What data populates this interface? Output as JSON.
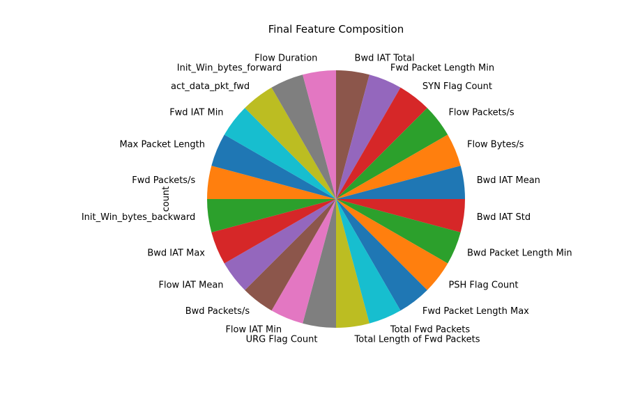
{
  "chart_data": {
    "type": "pie",
    "title": "Final Feature Composition",
    "ylabel": "count",
    "xlabel": "",
    "start_angle_deg": 90,
    "direction": "clockwise",
    "categories": [
      "Bwd IAT Total",
      "Fwd Packet Length Min",
      "SYN Flag Count",
      "Flow Packets/s",
      "Flow Bytes/s",
      "Bwd IAT Mean",
      "Bwd IAT Std",
      "Bwd Packet Length Min",
      "PSH Flag Count",
      "Fwd Packet Length Max",
      "Total Fwd Packets",
      "Total Length of Fwd Packets",
      "URG Flag Count",
      "Flow IAT Min",
      "Bwd Packets/s",
      "Flow IAT Mean",
      "Bwd IAT Max",
      "Init_Win_bytes_backward",
      "Fwd Packets/s",
      "Max Packet Length",
      "Fwd IAT Min",
      "act_data_pkt_fwd",
      "Init_Win_bytes_forward",
      "Flow Duration"
    ],
    "values": [
      1,
      1,
      1,
      1,
      1,
      1,
      1,
      1,
      1,
      1,
      1,
      1,
      1,
      1,
      1,
      1,
      1,
      1,
      1,
      1,
      1,
      1,
      1,
      1
    ],
    "colors": [
      "#8c564b",
      "#9467bd",
      "#d62728",
      "#2ca02c",
      "#ff7f0e",
      "#1f77b4",
      "#d62728",
      "#2ca02c",
      "#ff7f0e",
      "#1f77b4",
      "#17becf",
      "#bcbd22",
      "#7f7f7f",
      "#e377c2",
      "#8c564b",
      "#9467bd",
      "#d62728",
      "#2ca02c",
      "#ff7f0e",
      "#1f77b4",
      "#17becf",
      "#bcbd22",
      "#7f7f7f",
      "#e377c2"
    ]
  }
}
